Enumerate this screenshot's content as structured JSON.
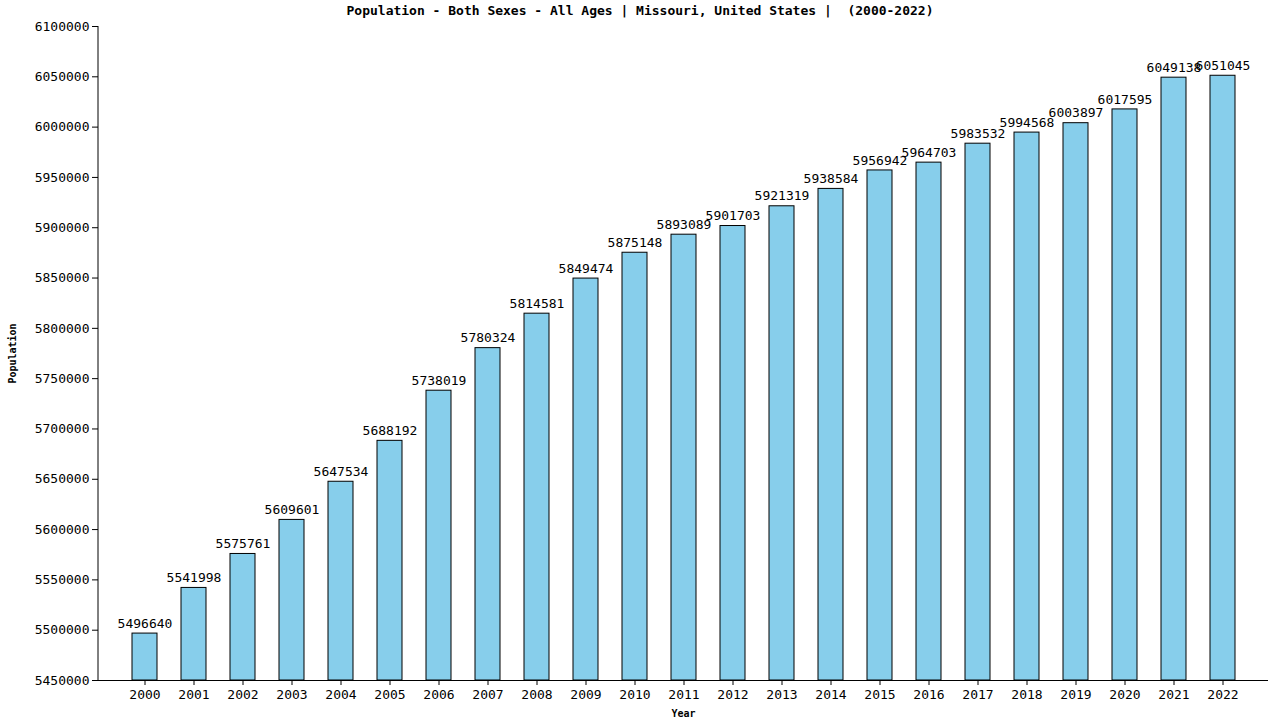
{
  "chart_data": {
    "type": "bar",
    "title": "Population - Both Sexes - All Ages | Missouri, United States |  (2000-2022)",
    "x_label": "Year",
    "y_label": "Population",
    "categories": [
      "2000",
      "2001",
      "2002",
      "2003",
      "2004",
      "2005",
      "2006",
      "2007",
      "2008",
      "2009",
      "2010",
      "2011",
      "2012",
      "2013",
      "2014",
      "2015",
      "2016",
      "2017",
      "2018",
      "2019",
      "2020",
      "2021",
      "2022"
    ],
    "values": [
      5496640,
      5541998,
      5575761,
      5609601,
      5647534,
      5688192,
      5738019,
      5780324,
      5814581,
      5849474,
      5875148,
      5893089,
      5901703,
      5921319,
      5938584,
      5956942,
      5964703,
      5983532,
      5994568,
      6003897,
      6017595,
      6049138,
      6051045
    ],
    "color": "#87ceeb",
    "ylim": [
      5450000,
      6100000
    ],
    "yticks": [
      5450000,
      5500000,
      5550000,
      5600000,
      5650000,
      5700000,
      5750000,
      5800000,
      5850000,
      5900000,
      5950000,
      6000000,
      6050000,
      6100000
    ],
    "grid": false,
    "data_labels": true
  }
}
